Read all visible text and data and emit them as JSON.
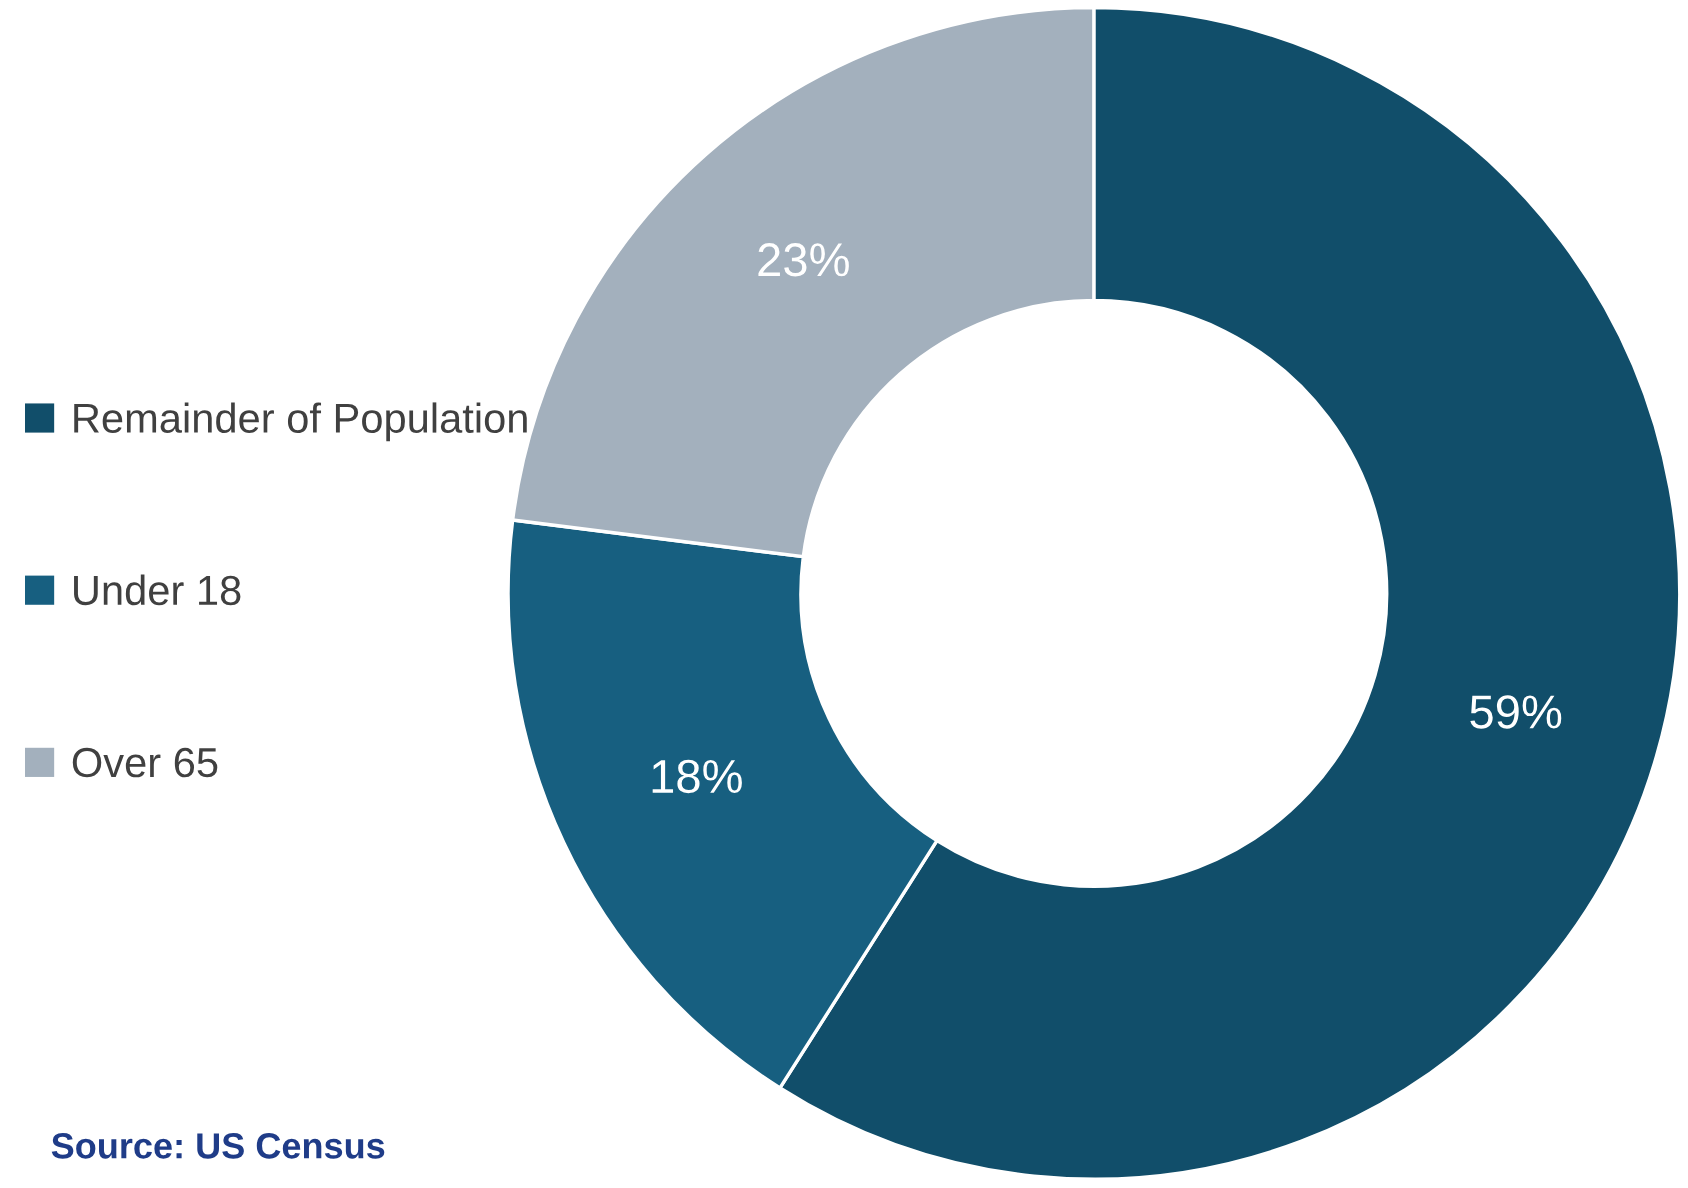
{
  "chart_data": {
    "type": "donut",
    "categories": [
      "Remainder of Population",
      "Under 18",
      "Over 65"
    ],
    "values": [
      59,
      18,
      23
    ],
    "colors": [
      "#114e6a",
      "#175f80",
      "#a3b0bd"
    ],
    "value_labels": [
      "59%",
      "18%",
      "23%"
    ],
    "legend": "left",
    "annotations": [
      "Source: US Census"
    ]
  }
}
